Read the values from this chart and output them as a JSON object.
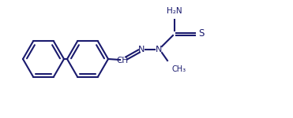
{
  "background": "#ffffff",
  "bond_color": "#1a1a6e",
  "text_color": "#1a1a6e",
  "linewidth": 1.5,
  "figsize": [
    3.71,
    1.5
  ],
  "dpi": 100,
  "xlim": [
    0,
    371
  ],
  "ylim": [
    0,
    150
  ]
}
